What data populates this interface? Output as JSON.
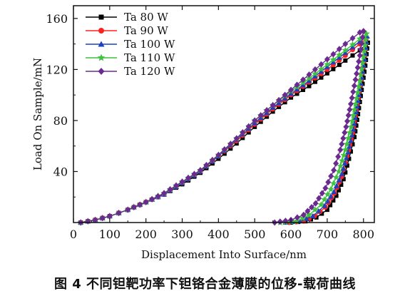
{
  "chart_data": {
    "type": "line",
    "title": "",
    "xlabel": "Displacement Into Surface/nm",
    "ylabel": "Load On Sample/mN",
    "xlim": [
      0,
      830
    ],
    "ylim": [
      0,
      170
    ],
    "xticks": [
      0,
      100,
      200,
      300,
      400,
      500,
      600,
      700,
      800
    ],
    "yticks": [
      40,
      80,
      120,
      160
    ],
    "grid": false,
    "legend_position": "top-left",
    "series": [
      {
        "name": "Ta 80 W",
        "color": "#000000",
        "marker": "square",
        "loading": [
          [
            20,
            0
          ],
          [
            60,
            2
          ],
          [
            100,
            5
          ],
          [
            150,
            10
          ],
          [
            200,
            16
          ],
          [
            250,
            22
          ],
          [
            300,
            30
          ],
          [
            350,
            39
          ],
          [
            400,
            50
          ],
          [
            450,
            62
          ],
          [
            500,
            75
          ],
          [
            550,
            87
          ],
          [
            600,
            98
          ],
          [
            650,
            107
          ],
          [
            700,
            117
          ],
          [
            750,
            127
          ],
          [
            790,
            135
          ],
          [
            812,
            141
          ]
        ],
        "unloading": [
          [
            812,
            141
          ],
          [
            805,
            123
          ],
          [
            795,
            104
          ],
          [
            785,
            85
          ],
          [
            775,
            67
          ],
          [
            760,
            50
          ],
          [
            745,
            34
          ],
          [
            725,
            21
          ],
          [
            700,
            10
          ],
          [
            670,
            4
          ],
          [
            640,
            1
          ],
          [
            600,
            0
          ]
        ]
      },
      {
        "name": "Ta 90 W",
        "color": "#ff2020",
        "marker": "circle",
        "loading": [
          [
            20,
            0
          ],
          [
            60,
            2
          ],
          [
            100,
            5
          ],
          [
            150,
            10
          ],
          [
            200,
            16
          ],
          [
            250,
            22
          ],
          [
            300,
            31
          ],
          [
            350,
            40
          ],
          [
            400,
            52
          ],
          [
            450,
            64
          ],
          [
            500,
            77
          ],
          [
            550,
            89
          ],
          [
            600,
            100
          ],
          [
            650,
            110
          ],
          [
            700,
            120
          ],
          [
            750,
            131
          ],
          [
            790,
            140
          ],
          [
            807,
            144
          ]
        ],
        "unloading": [
          [
            807,
            144
          ],
          [
            800,
            126
          ],
          [
            790,
            107
          ],
          [
            780,
            88
          ],
          [
            770,
            70
          ],
          [
            755,
            52
          ],
          [
            740,
            36
          ],
          [
            720,
            23
          ],
          [
            695,
            12
          ],
          [
            665,
            5
          ],
          [
            635,
            1
          ],
          [
            595,
            0
          ]
        ]
      },
      {
        "name": "Ta 100 W",
        "color": "#1f3fbf",
        "marker": "triangle",
        "loading": [
          [
            20,
            0
          ],
          [
            60,
            2
          ],
          [
            100,
            5
          ],
          [
            150,
            10
          ],
          [
            200,
            16
          ],
          [
            250,
            22
          ],
          [
            300,
            31
          ],
          [
            350,
            40
          ],
          [
            400,
            52
          ],
          [
            450,
            65
          ],
          [
            500,
            78
          ],
          [
            550,
            90
          ],
          [
            600,
            101
          ],
          [
            650,
            111
          ],
          [
            700,
            122
          ],
          [
            750,
            133
          ],
          [
            790,
            142
          ],
          [
            810,
            146
          ]
        ],
        "unloading": [
          [
            810,
            146
          ],
          [
            803,
            128
          ],
          [
            793,
            109
          ],
          [
            783,
            91
          ],
          [
            772,
            73
          ],
          [
            757,
            55
          ],
          [
            740,
            38
          ],
          [
            718,
            24
          ],
          [
            692,
            13
          ],
          [
            660,
            5
          ],
          [
            625,
            1
          ],
          [
            585,
            0
          ]
        ]
      },
      {
        "name": "Ta 110 W",
        "color": "#3fc23f",
        "marker": "star",
        "loading": [
          [
            20,
            0
          ],
          [
            60,
            2
          ],
          [
            100,
            5
          ],
          [
            150,
            10
          ],
          [
            200,
            16
          ],
          [
            250,
            23
          ],
          [
            300,
            32
          ],
          [
            350,
            41
          ],
          [
            400,
            53
          ],
          [
            450,
            66
          ],
          [
            500,
            80
          ],
          [
            550,
            92
          ],
          [
            600,
            103
          ],
          [
            650,
            113
          ],
          [
            700,
            124
          ],
          [
            750,
            135
          ],
          [
            790,
            144
          ],
          [
            808,
            148
          ]
        ],
        "unloading": [
          [
            808,
            148
          ],
          [
            800,
            130
          ],
          [
            790,
            111
          ],
          [
            778,
            93
          ],
          [
            766,
            75
          ],
          [
            750,
            57
          ],
          [
            732,
            40
          ],
          [
            710,
            26
          ],
          [
            683,
            14
          ],
          [
            650,
            6
          ],
          [
            615,
            1
          ],
          [
            570,
            0
          ]
        ]
      },
      {
        "name": "Ta 120 W",
        "color": "#6b2a8f",
        "marker": "diamond",
        "loading": [
          [
            20,
            0
          ],
          [
            60,
            2
          ],
          [
            100,
            5
          ],
          [
            150,
            10
          ],
          [
            200,
            16
          ],
          [
            250,
            23
          ],
          [
            300,
            32
          ],
          [
            350,
            41
          ],
          [
            400,
            53
          ],
          [
            450,
            66
          ],
          [
            500,
            80
          ],
          [
            550,
            92
          ],
          [
            600,
            104
          ],
          [
            650,
            116
          ],
          [
            700,
            128
          ],
          [
            750,
            140
          ],
          [
            790,
            149
          ],
          [
            800,
            150
          ]
        ],
        "unloading": [
          [
            800,
            150
          ],
          [
            790,
            131
          ],
          [
            778,
            112
          ],
          [
            765,
            93
          ],
          [
            752,
            75
          ],
          [
            736,
            57
          ],
          [
            718,
            41
          ],
          [
            695,
            27
          ],
          [
            668,
            15
          ],
          [
            635,
            6
          ],
          [
            600,
            2
          ],
          [
            555,
            0
          ]
        ]
      }
    ]
  },
  "caption": "图 4   不同钽靶功率下钽铬合金薄膜的位移-载荷曲线"
}
